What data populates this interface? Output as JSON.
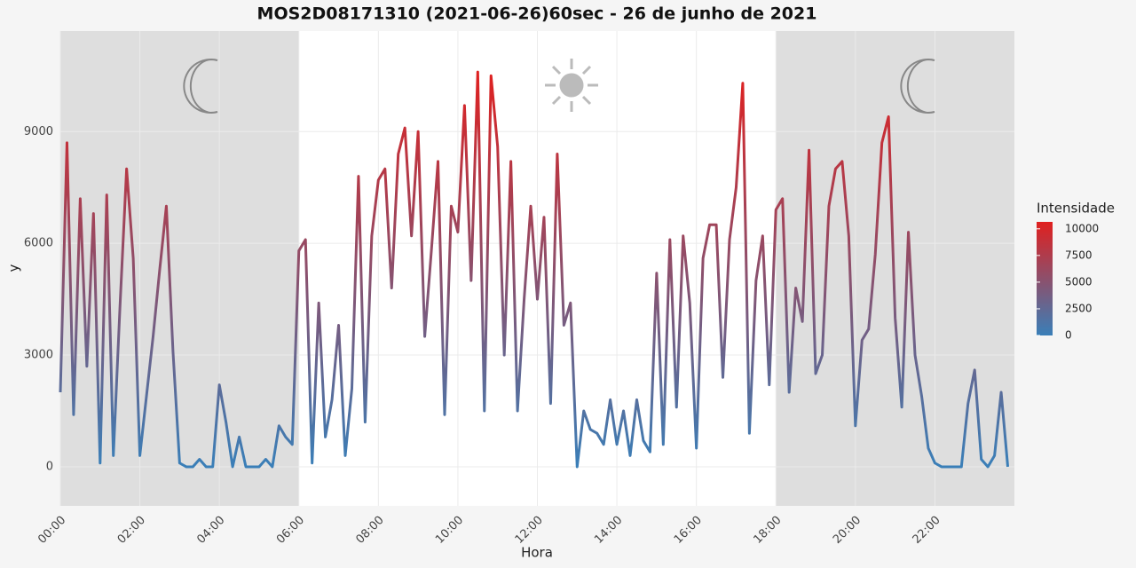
{
  "chart_data": {
    "type": "line",
    "title": "MOS2D08171310 (2021-06-26)60sec - 26 de junho de 2021",
    "x_label": "Hora",
    "y_label": "y",
    "x": [
      0,
      10,
      20,
      30,
      40,
      50,
      60,
      70,
      80,
      90,
      100,
      110,
      120,
      130,
      140,
      150,
      160,
      170,
      180,
      190,
      200,
      210,
      220,
      230,
      240,
      250,
      260,
      270,
      280,
      290,
      300,
      310,
      320,
      330,
      340,
      350,
      360,
      370,
      380,
      390,
      400,
      410,
      420,
      430,
      440,
      450,
      460,
      470,
      480,
      490,
      500,
      510,
      520,
      530,
      540,
      550,
      560,
      570,
      580,
      590,
      600,
      610,
      620,
      630,
      640,
      650,
      660,
      670,
      680,
      690,
      700,
      710,
      720,
      730,
      740,
      750,
      760,
      770,
      780,
      790,
      800,
      810,
      820,
      830,
      840,
      850,
      860,
      870,
      880,
      890,
      900,
      910,
      920,
      930,
      940,
      950,
      960,
      970,
      980,
      990,
      1000,
      1010,
      1020,
      1030,
      1040,
      1050,
      1060,
      1070,
      1080,
      1090,
      1100,
      1110,
      1120,
      1130,
      1140,
      1150,
      1160,
      1170,
      1180,
      1190,
      1200,
      1210,
      1220,
      1230,
      1240,
      1250,
      1260,
      1270,
      1280,
      1290,
      1300,
      1310,
      1320,
      1330,
      1340,
      1350,
      1360,
      1370,
      1380,
      1390,
      1400,
      1410,
      1420,
      1430
    ],
    "values": [
      2000,
      8700,
      1400,
      7200,
      2700,
      6800,
      100,
      7300,
      300,
      4300,
      8000,
      5600,
      300,
      1900,
      3500,
      5300,
      7000,
      3100,
      100,
      0,
      0,
      200,
      0,
      0,
      2200,
      1200,
      0,
      800,
      0,
      0,
      0,
      200,
      0,
      1100,
      800,
      600,
      5800,
      6100,
      100,
      4400,
      800,
      1800,
      3800,
      300,
      2100,
      7800,
      1200,
      6200,
      7700,
      8000,
      4800,
      8400,
      9100,
      6200,
      9000,
      3500,
      5800,
      8200,
      1400,
      7000,
      6300,
      9700,
      5000,
      10600,
      1500,
      10500,
      8600,
      3000,
      8200,
      1500,
      4500,
      7000,
      4500,
      6700,
      1700,
      8400,
      3800,
      4400,
      0,
      1500,
      1000,
      900,
      600,
      1800,
      600,
      1500,
      300,
      1800,
      700,
      400,
      5200,
      600,
      6100,
      1600,
      6200,
      4400,
      500,
      5600,
      6500,
      6500,
      2400,
      6100,
      7500,
      10300,
      900,
      5000,
      6200,
      2200,
      6900,
      7200,
      2000,
      4800,
      3900,
      8500,
      2500,
      3000,
      7000,
      8000,
      8200,
      6200,
      1100,
      3400,
      3700,
      5700,
      8700,
      9400,
      4000,
      1600,
      6300,
      3000,
      1900,
      500,
      100,
      0,
      0,
      0,
      0,
      1700,
      2600,
      200,
      0,
      300,
      2000,
      0
    ],
    "xlim": [
      0,
      1440
    ],
    "xticks": [
      {
        "value": 0,
        "label": "00:00"
      },
      {
        "value": 120,
        "label": "02:00"
      },
      {
        "value": 240,
        "label": "04:00"
      },
      {
        "value": 360,
        "label": "06:00"
      },
      {
        "value": 480,
        "label": "08:00"
      },
      {
        "value": 600,
        "label": "10:00"
      },
      {
        "value": 720,
        "label": "12:00"
      },
      {
        "value": 840,
        "label": "14:00"
      },
      {
        "value": 960,
        "label": "16:00"
      },
      {
        "value": 1080,
        "label": "18:00"
      },
      {
        "value": 1200,
        "label": "20:00"
      },
      {
        "value": 1320,
        "label": "22:00"
      }
    ],
    "ylim": [
      -1050,
      11700
    ],
    "yticks": [
      0,
      3000,
      6000,
      9000
    ],
    "grid": true,
    "shaded_ranges": [
      [
        0,
        360
      ],
      [
        1080,
        1440
      ]
    ],
    "color_scale": {
      "name": "Intensidade",
      "low": "#3a7fb8",
      "high": "#e0201f",
      "limits": [
        0,
        10650
      ],
      "breaks": [
        0,
        2500,
        5000,
        7500,
        10000
      ]
    }
  }
}
